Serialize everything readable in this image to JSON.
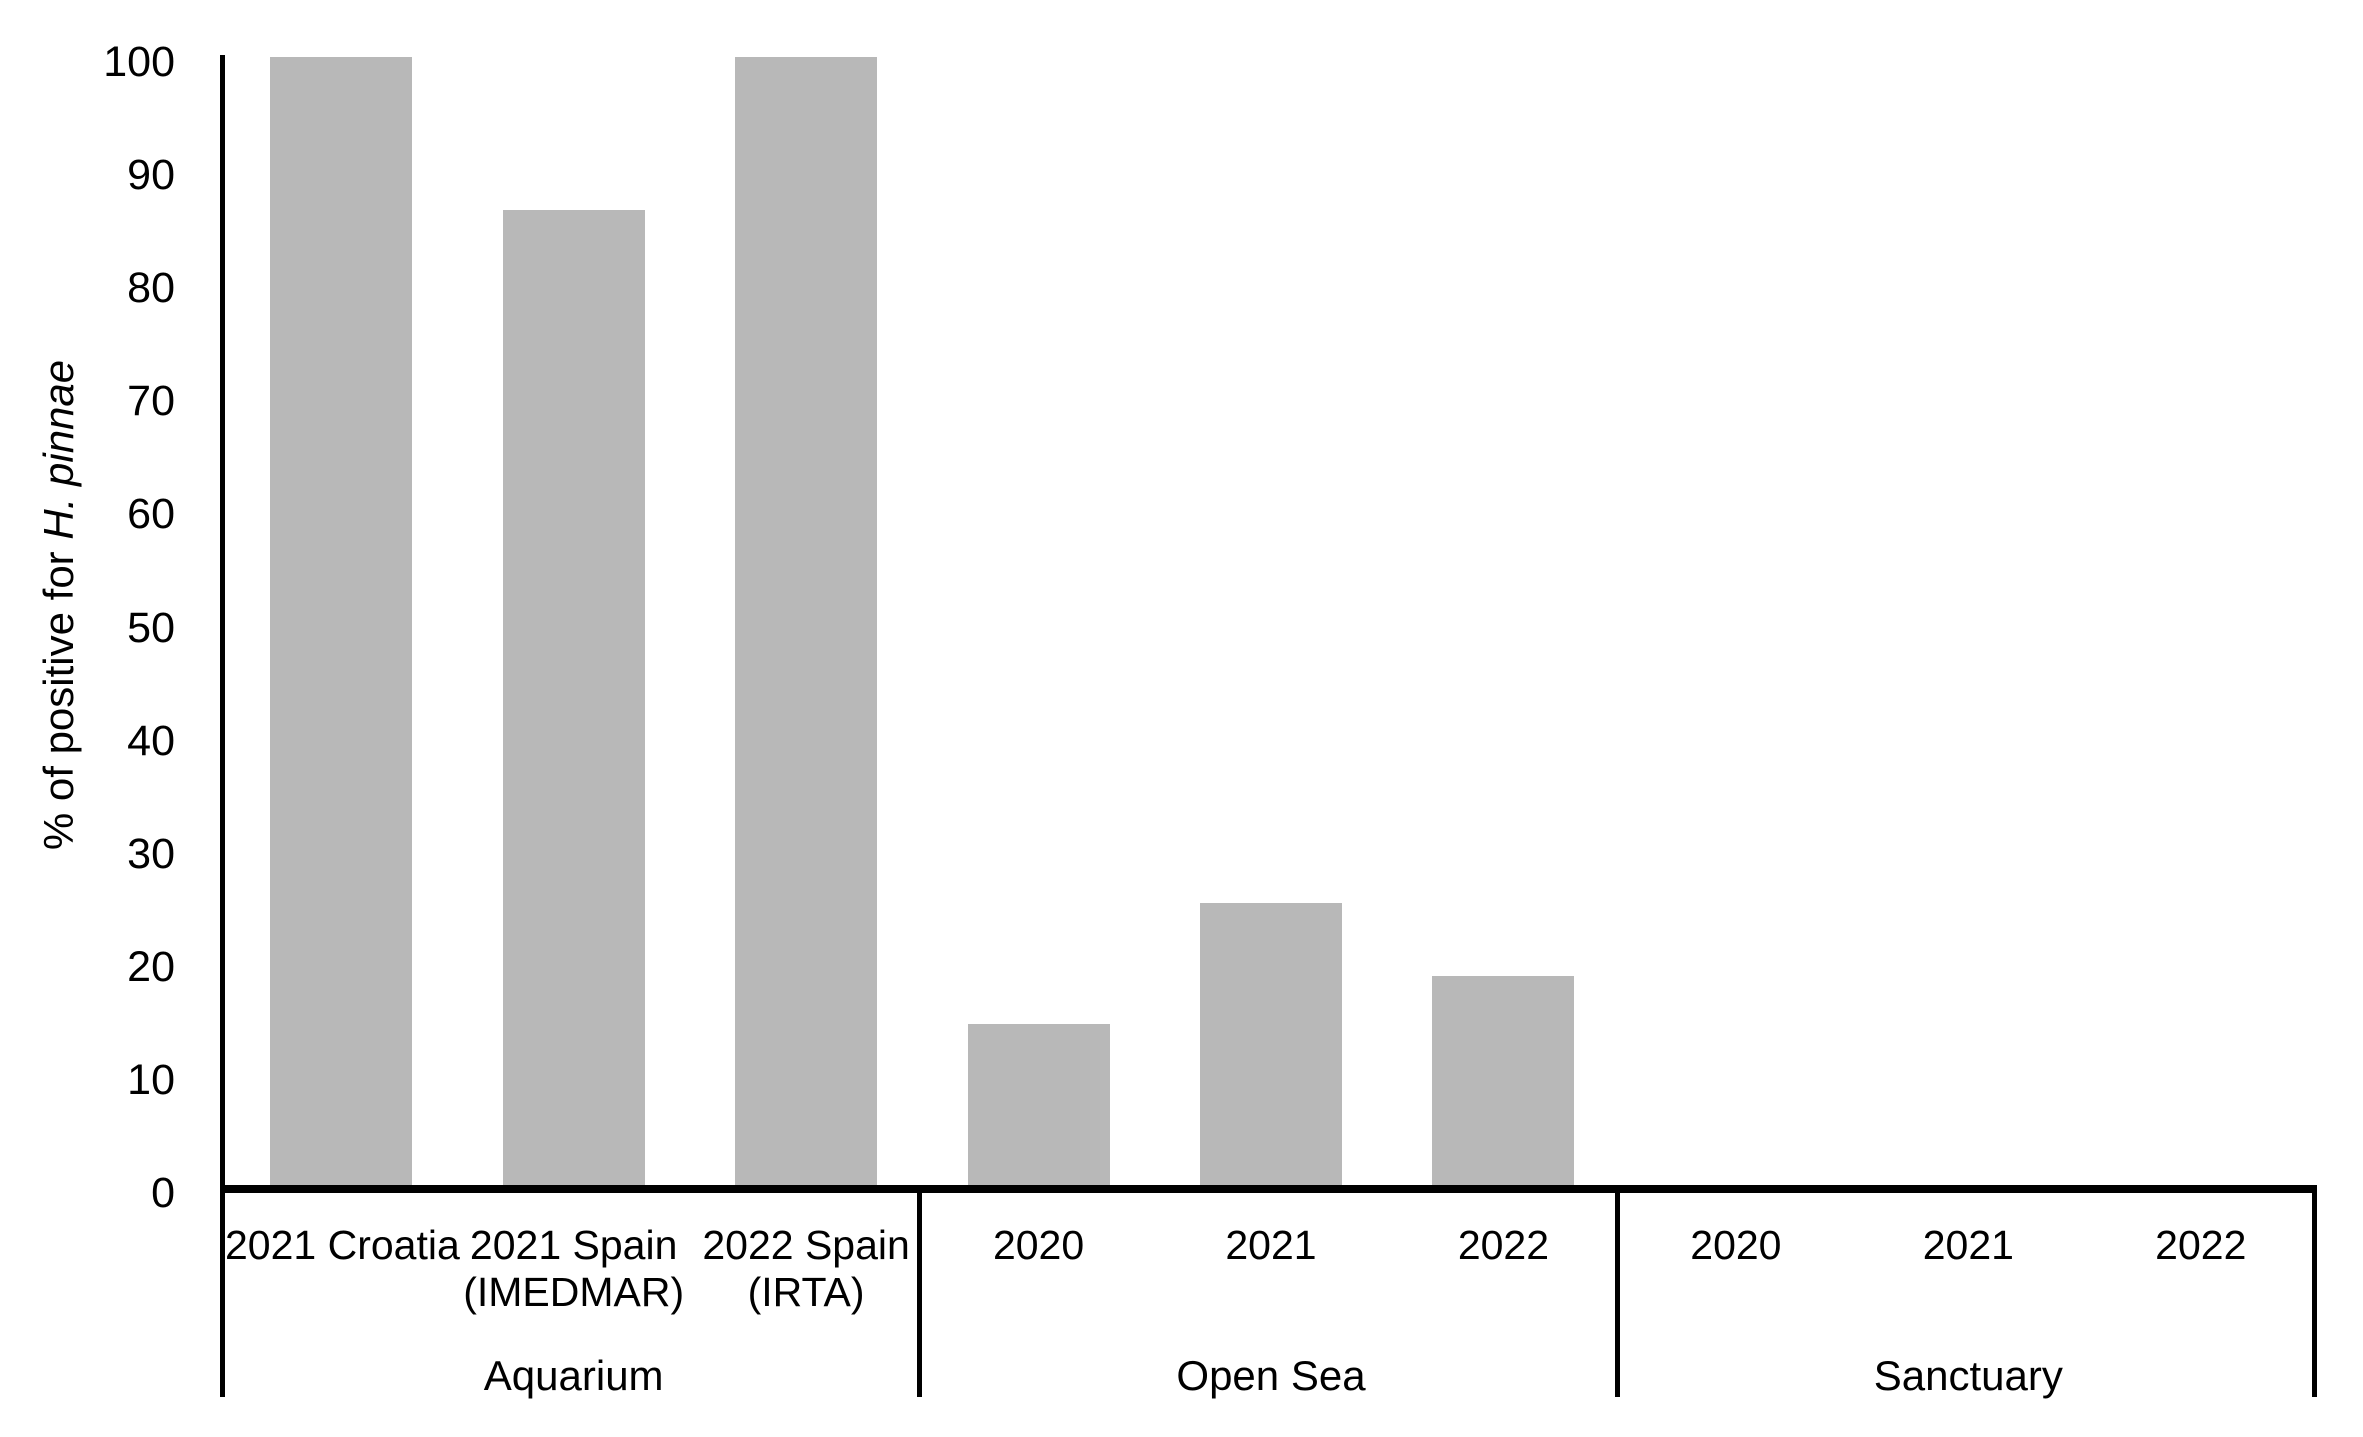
{
  "chart_data": {
    "type": "bar",
    "title": "",
    "ylabel_prefix": "% of positive for ",
    "ylabel_species": "H. pinnae",
    "ylabel_full": "% of positive for H. pinnae",
    "ylim": [
      0,
      100
    ],
    "y_ticks": [
      0,
      10,
      20,
      30,
      40,
      50,
      60,
      70,
      80,
      90,
      100
    ],
    "grid": "off",
    "legend": "none",
    "bar_color": "#b8b8b8",
    "axis_color": "#000000",
    "groups": [
      {
        "label": "Aquarium",
        "categories": [
          {
            "lines": [
              "2021 Croatia"
            ]
          },
          {
            "lines": [
              "2021 Spain",
              "(IMEDMAR)"
            ]
          },
          {
            "lines": [
              "2022 Spain",
              "(IRTA)"
            ]
          }
        ],
        "values": [
          100,
          86.4,
          100
        ]
      },
      {
        "label": "Open Sea",
        "categories": [
          {
            "lines": [
              "2020"
            ]
          },
          {
            "lines": [
              "2021"
            ]
          },
          {
            "lines": [
              "2022"
            ]
          }
        ],
        "values": [
          14.3,
          25,
          18.5
        ]
      },
      {
        "label": "Sanctuary",
        "categories": [
          {
            "lines": [
              "2020"
            ]
          },
          {
            "lines": [
              "2021"
            ]
          },
          {
            "lines": [
              "2022"
            ]
          }
        ],
        "values": [
          0,
          0,
          0
        ]
      }
    ]
  }
}
